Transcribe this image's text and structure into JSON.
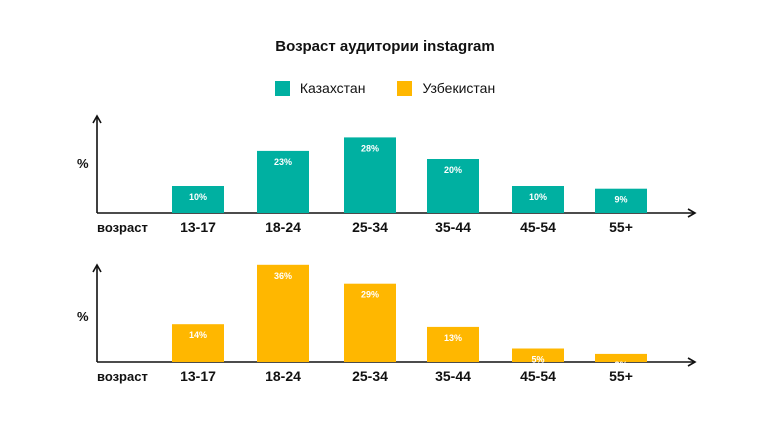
{
  "chart_data": {
    "type": "bar",
    "title": "Возраст аудитории instagram",
    "legend": [
      {
        "name": "Казахстан",
        "color": "#00b0a1"
      },
      {
        "name": "Узбекистан",
        "color": "#ffb700"
      }
    ],
    "legend_position": "top-center",
    "categories": [
      "13-17",
      "18-24",
      "25-34",
      "35-44",
      "45-54",
      "55+"
    ],
    "xlabel": "возраст",
    "ylabel": "%",
    "grid": false,
    "panels": [
      {
        "series": "Казахстан",
        "color": "#00b0a1",
        "values": [
          10,
          23,
          28,
          20,
          10,
          9
        ],
        "labels": [
          "10%",
          "23%",
          "28%",
          "20%",
          "10%",
          "9%"
        ],
        "ylim": [
          0,
          36
        ]
      },
      {
        "series": "Узбекистан",
        "color": "#ffb700",
        "values": [
          14,
          36,
          29,
          13,
          5,
          3
        ],
        "labels": [
          "14%",
          "36%",
          "29%",
          "13%",
          "5%",
          "3%"
        ],
        "ylim": [
          0,
          36
        ]
      }
    ]
  }
}
